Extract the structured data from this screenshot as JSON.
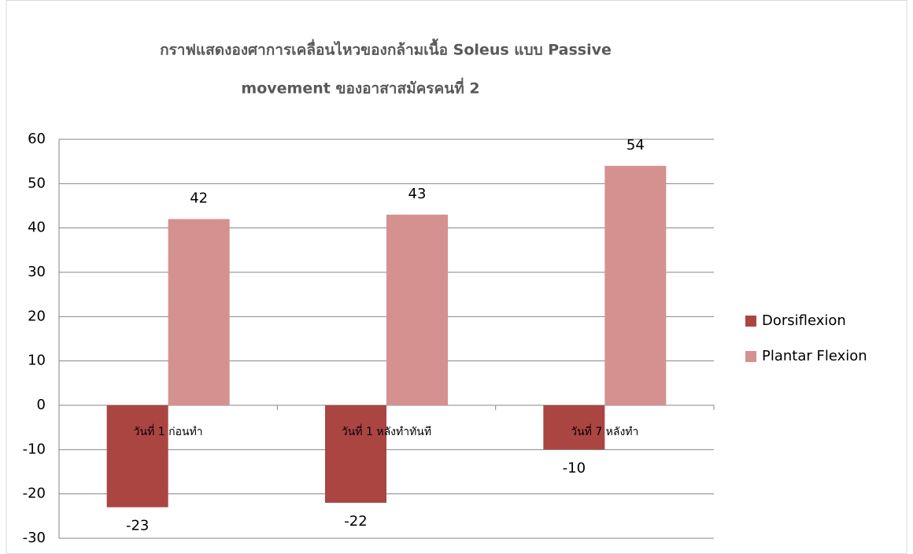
{
  "chart_data": {
    "type": "bar",
    "title": [
      "กราฟแสดงองศาการเคลื่อนไหวของกล้ามเนื้อ Soleus  แบบ Passive",
      "movement ของอาสาสมัครคนที่ 2"
    ],
    "categories": [
      "วันที่ 1 ก่อนทำ",
      "วันที่ 1 หลังทำทันที",
      "วันที่ 7 หลังทำ"
    ],
    "series": [
      {
        "name": "Dorsiflexion",
        "color": "#ab4542",
        "values": [
          -23,
          -22,
          -10
        ]
      },
      {
        "name": "Plantar Flexion",
        "color": "#d4918f",
        "values": [
          42,
          43,
          54
        ]
      }
    ],
    "ylim": [
      -30,
      60
    ],
    "yticks": [
      -30,
      -20,
      -10,
      0,
      10,
      20,
      30,
      40,
      50,
      60
    ],
    "grid": true,
    "legend": "right",
    "data_labels": true
  }
}
